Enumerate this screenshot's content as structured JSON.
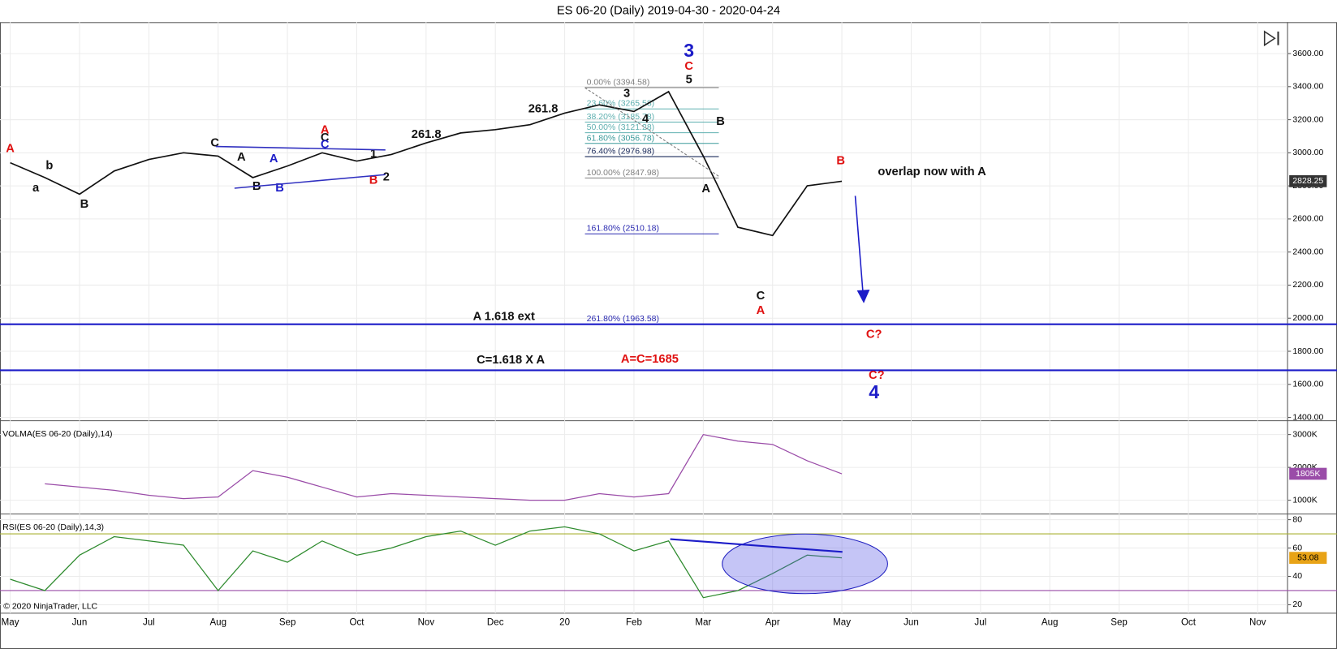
{
  "title": "ES 06-20 (Daily)  2019-04-30 - 2020-04-24",
  "copyright": "© 2020 NinjaTrader, LLC",
  "chart_data": [
    {
      "type": "line",
      "grid": true,
      "categories": [
        "May",
        null,
        "Jun",
        null,
        "Jul",
        null,
        "Aug",
        null,
        "Sep",
        null,
        "Oct",
        null,
        "Nov",
        null,
        "Dec",
        null,
        "20",
        null,
        "Feb",
        null,
        "Mar",
        null,
        "Apr",
        null,
        "May",
        null,
        "Jun",
        null,
        "Jul",
        null,
        "Aug",
        null,
        "Sep",
        null,
        "Oct",
        null,
        "Nov"
      ],
      "ylim": [
        1380,
        3790
      ],
      "yticks": [
        {
          "value": 1400,
          "label": "1400.00"
        },
        {
          "value": 1600,
          "label": "1600.00"
        },
        {
          "value": 1800,
          "label": "1800.00"
        },
        {
          "value": 2000,
          "label": "2000.00"
        },
        {
          "value": 2200,
          "label": "2200.00"
        },
        {
          "value": 2400,
          "label": "2400.00"
        },
        {
          "value": 2600,
          "label": "2600.00"
        },
        {
          "value": 2800,
          "label": "2800.00"
        },
        {
          "value": 3000,
          "label": "3000.00"
        },
        {
          "value": 3200,
          "label": "3200.00"
        },
        {
          "value": 3400,
          "label": "3400.00"
        },
        {
          "value": 3600,
          "label": "3600.00"
        }
      ],
      "series": [
        {
          "color": "#111111",
          "values": [
            2940,
            2850,
            2750,
            2890,
            2960,
            3000,
            2980,
            2850,
            2920,
            3000,
            2950,
            2990,
            3060,
            3120,
            3140,
            3170,
            3240,
            3290,
            3250,
            3370,
            2980,
            2550,
            2500,
            2800,
            2828.25,
            null,
            null,
            null,
            null,
            null,
            null,
            null,
            null,
            null,
            null,
            null,
            null
          ],
          "last_value": {
            "value": 2828.25,
            "label": "2828.25"
          },
          "badge_color": "#333333"
        }
      ],
      "hlines": [
        {
          "value": 1963.58,
          "color": "#1c1cc8"
        },
        {
          "value": 1685,
          "color": "#1c1cc8"
        }
      ],
      "fib": [
        {
          "value": 3394.58,
          "label": "0.00% (3394.58)",
          "color": "#808080"
        },
        {
          "value": 3265.58,
          "label": "23.60% (3265.58)",
          "color": "#5fb0b0"
        },
        {
          "value": 3185.78,
          "label": "38.20% (3185.78)",
          "color": "#5fb0b0"
        },
        {
          "value": 3121.28,
          "label": "50.00% (3121.28)",
          "color": "#5fb0b0"
        },
        {
          "value": 3056.78,
          "label": "61.80% (3056.78)",
          "color": "#3a9a9a"
        },
        {
          "value": 2976.98,
          "label": "76.40% (2976.98)",
          "color": "#1a2a5a"
        },
        {
          "value": 2847.98,
          "label": "100.00% (2847.98)",
          "color": "#808080"
        },
        {
          "value": 2510.18,
          "label": "161.80% (2510.18)",
          "color": "#2a2ab0"
        },
        {
          "value": 1963.58,
          "label": "261.80% (1963.58)",
          "color": "#2a2ab0"
        }
      ],
      "annotations": [
        {
          "text": "A",
          "color": "#e01010"
        },
        {
          "text": "a",
          "color": "#111"
        },
        {
          "text": "b",
          "color": "#111"
        },
        {
          "text": "B",
          "color": "#111"
        },
        {
          "text": "C",
          "color": "#111"
        },
        {
          "text": "A",
          "color": "#111"
        },
        {
          "text": "B",
          "color": "#111"
        },
        {
          "text": "A",
          "color": "#1c1cc8"
        },
        {
          "text": "B",
          "color": "#1c1cc8"
        },
        {
          "text": "A",
          "color": "#e01010"
        },
        {
          "text": "C",
          "color": "#111"
        },
        {
          "text": "C",
          "color": "#1c1cc8"
        },
        {
          "text": "1",
          "color": "#111"
        },
        {
          "text": "2",
          "color": "#111"
        },
        {
          "text": "B",
          "color": "#e01010"
        },
        {
          "text": "261.8",
          "color": "#111"
        },
        {
          "text": "261.8",
          "color": "#111"
        },
        {
          "text": "3",
          "color": "#1c1cc8"
        },
        {
          "text": "C",
          "color": "#e01010"
        },
        {
          "text": "5",
          "color": "#111"
        },
        {
          "text": "3",
          "color": "#111"
        },
        {
          "text": "4",
          "color": "#111"
        },
        {
          "text": "B",
          "color": "#111"
        },
        {
          "text": "A",
          "color": "#111"
        },
        {
          "text": "B",
          "color": "#e01010"
        },
        {
          "text": "overlap now with A",
          "color": "#111"
        },
        {
          "text": "C",
          "color": "#111"
        },
        {
          "text": "A",
          "color": "#e01010"
        },
        {
          "text": "A 1.618 ext",
          "color": "#111"
        },
        {
          "text": "C=1.618 X A",
          "color": "#111"
        },
        {
          "text": "A=C=1685",
          "color": "#e01010"
        },
        {
          "text": "C?",
          "color": "#e01010"
        },
        {
          "text": "C?",
          "color": "#e01010"
        },
        {
          "text": "4",
          "color": "#1c1cc8"
        }
      ]
    },
    {
      "type": "line",
      "grid": true,
      "title": "VOLMA(ES 06-20 (Daily),14)",
      "ylim": [
        580,
        3420
      ],
      "yticks": [
        {
          "value": 1000,
          "label": "1000K"
        },
        {
          "value": 2000,
          "label": "2000K"
        },
        {
          "value": 3000,
          "label": "3000K"
        }
      ],
      "series": [
        {
          "color": "#9a4ca8",
          "values": [
            null,
            1500,
            1400,
            1300,
            1150,
            1050,
            1100,
            1900,
            1700,
            1400,
            1100,
            1200,
            1150,
            1100,
            1050,
            1000,
            1000,
            1200,
            1100,
            1200,
            3000,
            2800,
            2700,
            2200,
            1805,
            null,
            null,
            null,
            null,
            null,
            null,
            null,
            null,
            null,
            null,
            null,
            null
          ],
          "last_value": {
            "value": 1805,
            "label": "1805K"
          },
          "badge_color": "#9a4ca8"
        }
      ]
    },
    {
      "type": "line",
      "grid": true,
      "title": "RSI(ES 06-20 (Daily),14,3)",
      "ylim": [
        14,
        84
      ],
      "yticks": [
        20,
        40,
        60,
        80
      ],
      "series": [
        {
          "color": "#2e8b2e",
          "values": [
            38,
            30,
            55,
            68,
            65,
            62,
            30,
            58,
            50,
            65,
            55,
            60,
            68,
            72,
            62,
            72,
            75,
            70,
            58,
            65,
            25,
            30,
            42,
            55,
            53.08,
            null,
            null,
            null,
            null,
            null,
            null,
            null,
            null,
            null,
            null,
            null,
            null
          ],
          "last_value": {
            "value": 53.08,
            "label": "53.08"
          },
          "badge_color": "#e8a317"
        }
      ],
      "hlines": [
        {
          "value": 70,
          "color": "#a8b030"
        },
        {
          "value": 30,
          "color": "#9a4ca8"
        }
      ]
    }
  ]
}
